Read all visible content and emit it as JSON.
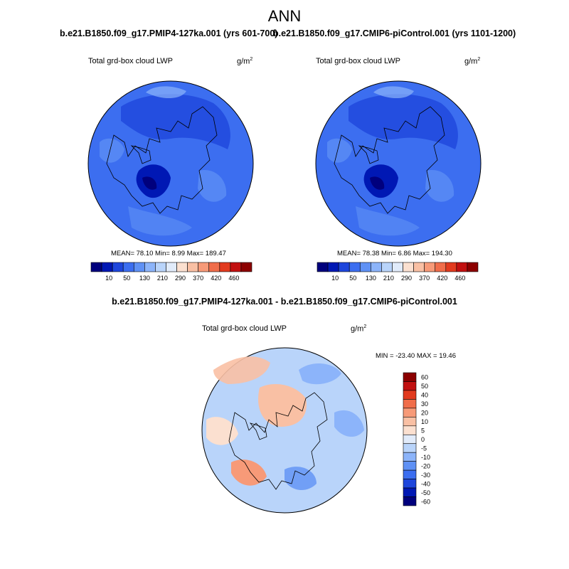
{
  "page": {
    "main_title": "ANN"
  },
  "panels": {
    "left": {
      "title": "b.e21.B1850.f09_g17.PMIP4-127ka.001 (yrs 601-700)",
      "variable": "Total grd-box cloud LWP",
      "units": "g/m",
      "units_sup": "2",
      "stats": "MEAN=  78.10  Min=   8.99  Max= 189.47"
    },
    "right": {
      "title": "b.e21.B1850.f09_g17.CMIP6-piControl.001 (yrs 1101-1200)",
      "variable": "Total grd-box cloud LWP",
      "units": "g/m",
      "units_sup": "2",
      "stats": "MEAN=  78.38  Min=   6.86  Max= 194.30"
    },
    "diff": {
      "title": "b.e21.B1850.f09_g17.PMIP4-127ka.001 - b.e21.B1850.f09_g17.CMIP6-piControl.001",
      "variable": "Total grd-box cloud LWP",
      "units": "g/m",
      "units_sup": "2",
      "minmax": "MIN = -23.40 MAX =  19.46"
    }
  },
  "colorbars": {
    "abs_colors": [
      "#00007d",
      "#0018b4",
      "#1e46dc",
      "#3c6ef0",
      "#5f91f5",
      "#8cb4fa",
      "#b9d4fa",
      "#e1ebfa",
      "#fbe0d0",
      "#f9c0a4",
      "#f79a78",
      "#f06d4a",
      "#e23a1e",
      "#c21010",
      "#8c0000"
    ],
    "abs_labels": [
      "10",
      "50",
      "130",
      "210",
      "290",
      "370",
      "420",
      "460"
    ],
    "diff_colors": [
      "#00007d",
      "#0018b4",
      "#1e46dc",
      "#3c6ef0",
      "#5f91f5",
      "#8cb4fa",
      "#b9d4fa",
      "#e1ebfa",
      "#fbe0d0",
      "#f9c0a4",
      "#f79a78",
      "#f06d4a",
      "#e23a1e",
      "#c21010",
      "#8c0000"
    ],
    "diff_labels": [
      "-60",
      "-50",
      "-40",
      "-30",
      "-20",
      "-10",
      "-5",
      "0",
      "5",
      "10",
      "20",
      "30",
      "40",
      "50",
      "60"
    ]
  }
}
